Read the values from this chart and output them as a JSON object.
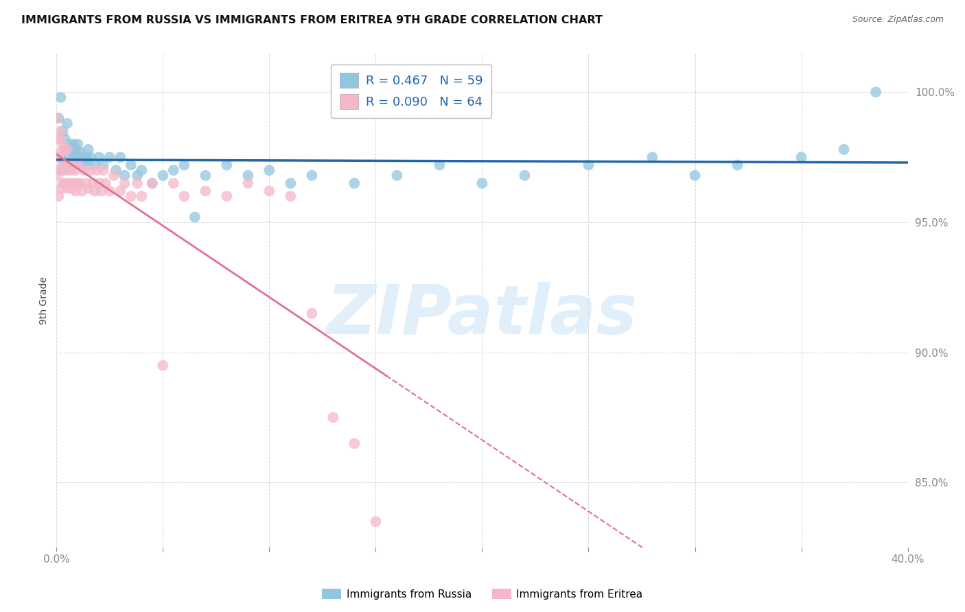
{
  "title": "IMMIGRANTS FROM RUSSIA VS IMMIGRANTS FROM ERITREA 9TH GRADE CORRELATION CHART",
  "source": "Source: ZipAtlas.com",
  "ylabel": "9th Grade",
  "ytick_values": [
    1.0,
    0.95,
    0.9,
    0.85
  ],
  "xlim": [
    0.0,
    0.4
  ],
  "ylim": [
    0.825,
    1.015
  ],
  "legend_russia": "R = 0.467   N = 59",
  "legend_eritrea": "R = 0.090   N = 64",
  "russia_color": "#92c5de",
  "eritrea_color": "#f4b8c8",
  "russia_line_color": "#2166ac",
  "eritrea_line_color": "#e07090",
  "background_color": "#ffffff",
  "watermark": "ZIPatlas",
  "russia_R": 0.467,
  "eritrea_R": 0.09,
  "russia_scatter_x": [
    0.001,
    0.002,
    0.002,
    0.003,
    0.003,
    0.004,
    0.004,
    0.005,
    0.005,
    0.006,
    0.006,
    0.007,
    0.007,
    0.008,
    0.008,
    0.009,
    0.009,
    0.01,
    0.01,
    0.011,
    0.012,
    0.013,
    0.014,
    0.015,
    0.015,
    0.016,
    0.018,
    0.02,
    0.022,
    0.025,
    0.028,
    0.03,
    0.032,
    0.035,
    0.038,
    0.04,
    0.045,
    0.05,
    0.055,
    0.06,
    0.065,
    0.07,
    0.08,
    0.09,
    0.1,
    0.11,
    0.12,
    0.14,
    0.16,
    0.18,
    0.2,
    0.22,
    0.25,
    0.28,
    0.3,
    0.32,
    0.35,
    0.37,
    0.385
  ],
  "russia_scatter_y": [
    0.99,
    0.998,
    0.975,
    0.985,
    0.97,
    0.982,
    0.973,
    0.988,
    0.972,
    0.98,
    0.975,
    0.978,
    0.973,
    0.98,
    0.975,
    0.978,
    0.972,
    0.98,
    0.975,
    0.977,
    0.975,
    0.972,
    0.975,
    0.972,
    0.978,
    0.975,
    0.972,
    0.975,
    0.972,
    0.975,
    0.97,
    0.975,
    0.968,
    0.972,
    0.968,
    0.97,
    0.965,
    0.968,
    0.97,
    0.972,
    0.952,
    0.968,
    0.972,
    0.968,
    0.97,
    0.965,
    0.968,
    0.965,
    0.968,
    0.972,
    0.965,
    0.968,
    0.972,
    0.975,
    0.968,
    0.972,
    0.975,
    0.978,
    1.0
  ],
  "eritrea_scatter_x": [
    0.0,
    0.0,
    0.0,
    0.0,
    0.001,
    0.001,
    0.001,
    0.001,
    0.002,
    0.002,
    0.002,
    0.002,
    0.003,
    0.003,
    0.003,
    0.004,
    0.004,
    0.004,
    0.005,
    0.005,
    0.005,
    0.006,
    0.006,
    0.007,
    0.007,
    0.008,
    0.008,
    0.009,
    0.009,
    0.01,
    0.01,
    0.011,
    0.012,
    0.013,
    0.014,
    0.015,
    0.016,
    0.017,
    0.018,
    0.019,
    0.02,
    0.021,
    0.022,
    0.023,
    0.025,
    0.027,
    0.03,
    0.032,
    0.035,
    0.038,
    0.04,
    0.045,
    0.05,
    0.055,
    0.06,
    0.07,
    0.08,
    0.09,
    0.1,
    0.11,
    0.12,
    0.13,
    0.14,
    0.15
  ],
  "eritrea_scatter_y": [
    0.968,
    0.975,
    0.982,
    0.99,
    0.96,
    0.97,
    0.975,
    0.982,
    0.963,
    0.97,
    0.977,
    0.985,
    0.965,
    0.972,
    0.98,
    0.965,
    0.972,
    0.978,
    0.963,
    0.97,
    0.978,
    0.965,
    0.972,
    0.963,
    0.97,
    0.965,
    0.972,
    0.962,
    0.97,
    0.965,
    0.972,
    0.965,
    0.962,
    0.97,
    0.965,
    0.963,
    0.97,
    0.965,
    0.962,
    0.97,
    0.965,
    0.962,
    0.97,
    0.965,
    0.962,
    0.968,
    0.962,
    0.965,
    0.96,
    0.965,
    0.96,
    0.965,
    0.895,
    0.965,
    0.96,
    0.962,
    0.96,
    0.965,
    0.962,
    0.96,
    0.915,
    0.875,
    0.865,
    0.835
  ]
}
